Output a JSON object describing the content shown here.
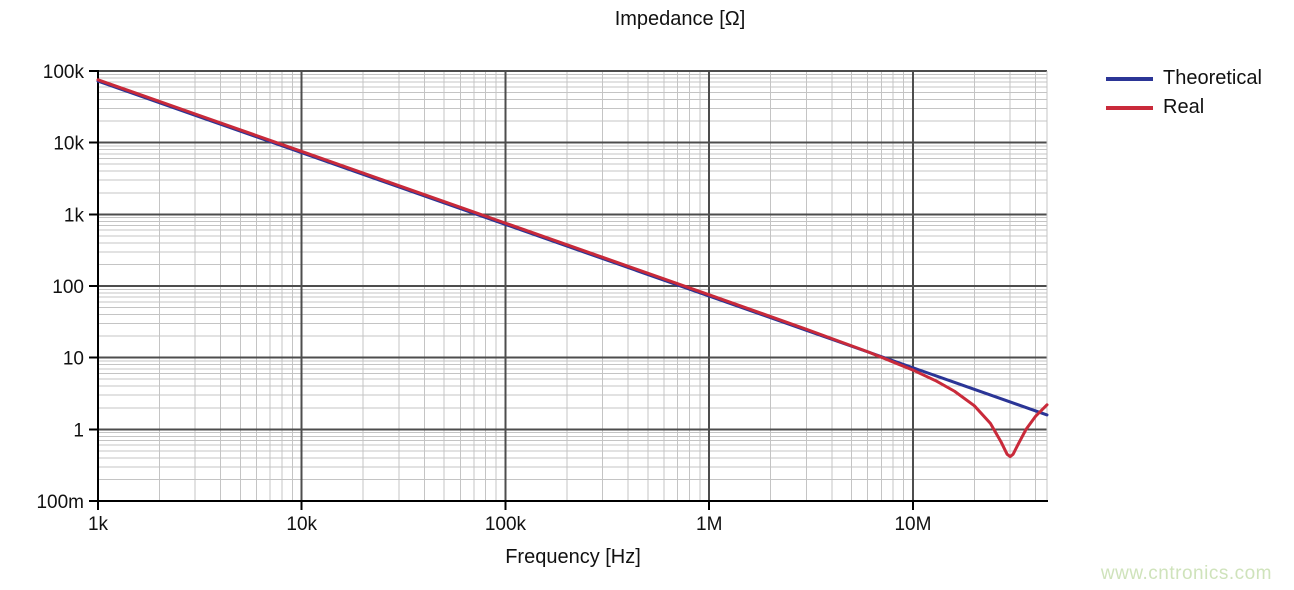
{
  "watermark": {
    "text": "www.cntronics.com",
    "color": "#cfe3bb"
  },
  "chart_data": {
    "type": "line",
    "title": "Impedance [Ω]",
    "xlabel": "Frequency [Hz]",
    "ylabel": "",
    "x_scale": "log",
    "y_scale": "log",
    "xlim": [
      1000,
      45500000
    ],
    "ylim": [
      0.1,
      100000
    ],
    "grid": {
      "major": true,
      "minor": true
    },
    "legend_position": "outside-top-right",
    "x_ticks": [
      {
        "value": 1000,
        "label": "1k"
      },
      {
        "value": 10000,
        "label": "10k"
      },
      {
        "value": 100000,
        "label": "100k"
      },
      {
        "value": 1000000,
        "label": "1M"
      },
      {
        "value": 10000000,
        "label": "10M"
      }
    ],
    "y_ticks": [
      {
        "value": 100000,
        "label": "100k"
      },
      {
        "value": 10000,
        "label": "10k"
      },
      {
        "value": 1000,
        "label": "1k"
      },
      {
        "value": 100,
        "label": "100"
      },
      {
        "value": 10,
        "label": "10"
      },
      {
        "value": 1,
        "label": "1"
      },
      {
        "value": 0.1,
        "label": "100m"
      }
    ],
    "colors": {
      "grid_major": "#4d4d4d",
      "grid_minor": "#c4c4c4",
      "axis": "#000000",
      "text": "#111111"
    },
    "series": [
      {
        "name": "Theoretical",
        "color": "#2b3596",
        "x": [
          1000,
          3000,
          10000,
          30000,
          100000,
          300000,
          1000000,
          3000000,
          10000000,
          20000000,
          30000000,
          45500000
        ],
        "y": [
          72300,
          24100,
          7230,
          2410,
          723,
          241,
          72.3,
          24.1,
          7.23,
          3.62,
          2.41,
          1.59
        ]
      },
      {
        "name": "Real",
        "color": "#c92a3a",
        "x": [
          1000,
          3000,
          10000,
          30000,
          100000,
          300000,
          1000000,
          3000000,
          6000000,
          10000000,
          13000000,
          16000000,
          20000000,
          24000000,
          27000000,
          29000000,
          30000000,
          31000000,
          33000000,
          36000000,
          40000000,
          45500000
        ],
        "y": [
          72300,
          24100,
          7230,
          2410,
          723,
          241,
          72.3,
          23.9,
          11.6,
          6.44,
          4.54,
          3.26,
          2.05,
          1.16,
          0.65,
          0.43,
          0.4,
          0.43,
          0.61,
          0.97,
          1.46,
          2.11
        ]
      }
    ]
  }
}
